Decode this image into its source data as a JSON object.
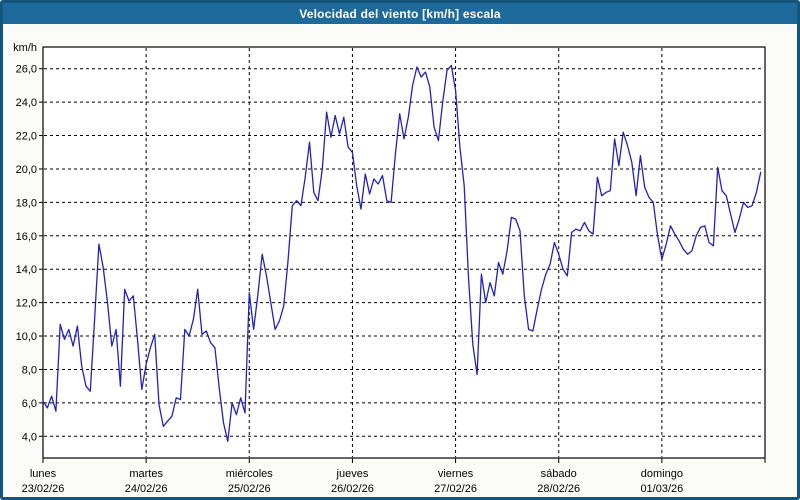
{
  "window": {
    "title": "Velocidad del viento [km/h] escala"
  },
  "chart_data": {
    "type": "line",
    "title": "Velocidad del viento [km/h] escala",
    "ylabel": "km/h",
    "xlabel": "",
    "ylim": [
      2.7,
      27.3
    ],
    "yticks": [
      4,
      6,
      8,
      10,
      12,
      14,
      16,
      18,
      20,
      22,
      24,
      26
    ],
    "ytick_labels": [
      "4,0",
      "6,0",
      "8,0",
      "10,0",
      "12,0",
      "14,0",
      "16,0",
      "18,0",
      "20,0",
      "22,0",
      "24,0",
      "26,0"
    ],
    "grid": true,
    "legend_position": "none",
    "days": [
      {
        "name": "lunes",
        "date": "23/02/26"
      },
      {
        "name": "martes",
        "date": "24/02/26"
      },
      {
        "name": "miércoles",
        "date": "25/02/26"
      },
      {
        "name": "jueves",
        "date": "26/02/26"
      },
      {
        "name": "viernes",
        "date": "27/02/26"
      },
      {
        "name": "sábado",
        "date": "28/02/26"
      },
      {
        "name": "domingo",
        "date": "01/03/26"
      }
    ],
    "points_per_day": 24,
    "series": [
      {
        "name": "Velocidad del viento",
        "values": [
          6.1,
          5.7,
          6.4,
          5.5,
          10.7,
          9.8,
          10.4,
          9.4,
          10.6,
          8.2,
          7.0,
          6.7,
          11.0,
          15.5,
          14.1,
          12.0,
          9.4,
          10.4,
          7.0,
          12.8,
          12.1,
          12.4,
          9.8,
          6.8,
          8.3,
          9.3,
          10.1,
          5.9,
          4.6,
          4.9,
          5.2,
          6.3,
          6.2,
          10.4,
          10.0,
          11.0,
          12.8,
          10.1,
          10.3,
          9.6,
          9.3,
          6.9,
          4.8,
          3.7,
          6.0,
          5.3,
          6.3,
          5.4,
          12.6,
          10.4,
          12.5,
          14.9,
          13.6,
          12.0,
          10.4,
          10.9,
          11.8,
          14.5,
          17.8,
          18.1,
          17.8,
          19.5,
          21.6,
          18.6,
          18.1,
          20.0,
          23.4,
          21.9,
          23.2,
          22.1,
          23.1,
          21.3,
          21.0,
          19.0,
          17.6,
          19.7,
          18.5,
          19.4,
          19.1,
          19.6,
          18.1,
          18.0,
          20.9,
          23.3,
          21.8,
          23.1,
          25.0,
          26.1,
          25.5,
          25.8,
          24.9,
          22.5,
          21.7,
          24.0,
          25.9,
          26.2,
          24.7,
          21.3,
          19.0,
          13.5,
          9.5,
          7.7,
          13.7,
          12.0,
          13.2,
          12.4,
          14.4,
          13.7,
          15.1,
          17.1,
          17.0,
          16.3,
          12.4,
          10.4,
          10.3,
          11.6,
          12.8,
          13.7,
          14.3,
          15.6,
          14.9,
          14.0,
          13.6,
          16.2,
          16.4,
          16.3,
          16.8,
          16.3,
          16.1,
          19.5,
          18.4,
          18.6,
          18.7,
          21.8,
          20.2,
          22.2,
          21.4,
          20.4,
          18.4,
          20.8,
          18.9,
          18.3,
          18.0,
          16.0,
          14.6,
          15.5,
          16.6,
          16.1,
          15.7,
          15.2,
          14.9,
          15.1,
          16.0,
          16.5,
          16.6,
          15.6,
          15.4,
          20.1,
          18.7,
          18.4,
          17.3,
          16.2,
          17.0,
          18.0,
          17.7,
          17.8,
          18.6,
          19.8
        ]
      }
    ],
    "colors": {
      "line": "#2222bb",
      "title_bar": "#1d6a9b",
      "frame": "#14557b",
      "plot_bg": "#ffffff",
      "page_bg": "#fbfbf7",
      "grid": "#000000",
      "title_text": "#ffffff"
    }
  }
}
